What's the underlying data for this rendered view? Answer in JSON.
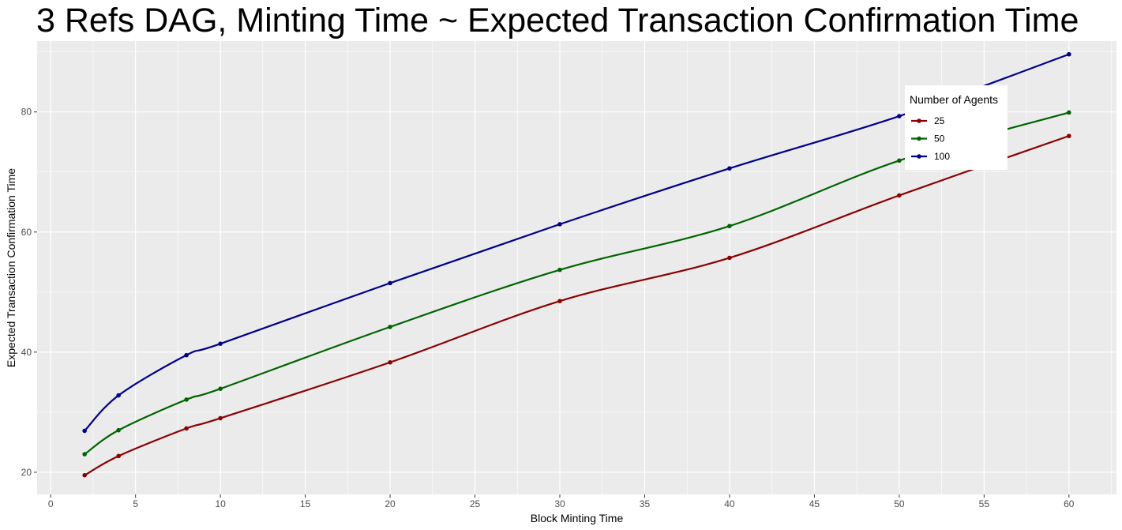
{
  "chart_data": {
    "type": "line",
    "title": "3 Refs DAG,  Minting Time ~ Expected Transaction Confirmation Time",
    "xlabel": "Block Minting Time",
    "ylabel": "Expected Transaction Confirmation Time",
    "xlim": [
      -0.8,
      62.8
    ],
    "ylim": [
      16.3,
      91.8
    ],
    "x_ticks": [
      0,
      5,
      10,
      15,
      20,
      25,
      30,
      35,
      40,
      45,
      50,
      55,
      60
    ],
    "y_ticks": [
      20,
      40,
      60,
      80
    ],
    "x": [
      2,
      4,
      8,
      10,
      20,
      30,
      40,
      50,
      60
    ],
    "grid": true,
    "legend": {
      "title": "Number of Agents",
      "position": "top-right"
    },
    "series": [
      {
        "name": "25",
        "color": "#8b0000",
        "values": [
          19.5,
          22.7,
          27.3,
          29.0,
          38.3,
          48.5,
          55.7,
          66.1,
          76.0
        ]
      },
      {
        "name": "50",
        "color": "#006400",
        "values": [
          23.0,
          27.0,
          32.1,
          33.9,
          44.2,
          53.7,
          61.0,
          71.9,
          79.9
        ]
      },
      {
        "name": "100",
        "color": "#00008b",
        "values": [
          26.9,
          32.8,
          39.5,
          41.4,
          51.5,
          61.3,
          70.6,
          79.3,
          89.6
        ]
      }
    ]
  }
}
